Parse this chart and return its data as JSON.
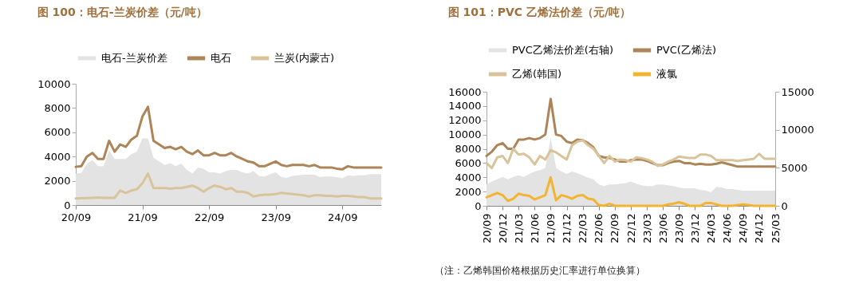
{
  "chart_data": [
    {
      "type": "line",
      "title": "图 100：电石-兰炭价差（元/吨）",
      "legend": "top",
      "categories": [
        "20/09",
        null,
        null,
        null,
        null,
        null,
        null,
        null,
        null,
        null,
        null,
        null,
        "21/09",
        null,
        null,
        null,
        null,
        null,
        null,
        null,
        null,
        null,
        null,
        null,
        "22/09",
        null,
        null,
        null,
        null,
        null,
        null,
        null,
        null,
        null,
        null,
        null,
        "23/09",
        null,
        null,
        null,
        null,
        null,
        null,
        null,
        null,
        null,
        null,
        null,
        "24/09",
        null,
        null,
        null,
        null,
        null,
        null,
        null
      ],
      "ylim": [
        0,
        10000
      ],
      "yticks": [
        0,
        2000,
        4000,
        6000,
        8000,
        10000
      ],
      "series": [
        {
          "name": "电石-兰炭价差",
          "type": "area",
          "color": "#e3e3e3",
          "values": [
            2600,
            2640,
            3400,
            3700,
            3200,
            3200,
            4500,
            3800,
            3800,
            3800,
            4200,
            4400,
            5500,
            5500,
            3900,
            3600,
            3300,
            3450,
            3200,
            3400,
            2900,
            2600,
            3100,
            3000,
            2700,
            2700,
            2600,
            2800,
            2900,
            2900,
            2700,
            2600,
            2800,
            2400,
            2350,
            2550,
            2700,
            2300,
            2250,
            2400,
            2450,
            2500,
            2500,
            2500,
            2300,
            2350,
            2350,
            2300,
            2200,
            2450,
            2400,
            2450,
            2450,
            2550,
            2550,
            2550
          ]
        },
        {
          "name": "电石",
          "type": "line",
          "color": "#ad8457",
          "values": [
            3150,
            3200,
            4000,
            4300,
            3800,
            3800,
            5300,
            4400,
            5000,
            4800,
            5400,
            5700,
            7300,
            8100,
            5300,
            5000,
            4700,
            4800,
            4600,
            4800,
            4400,
            4200,
            4500,
            4100,
            4100,
            4300,
            4100,
            4100,
            4300,
            4000,
            3800,
            3600,
            3500,
            3200,
            3200,
            3400,
            3600,
            3300,
            3200,
            3300,
            3300,
            3300,
            3200,
            3300,
            3100,
            3100,
            3100,
            3000,
            2950,
            3200,
            3100,
            3100,
            3100,
            3100,
            3100,
            3100
          ]
        },
        {
          "name": "兰炭(内蒙古)",
          "type": "line",
          "color": "#d9c39a",
          "values": [
            550,
            560,
            580,
            600,
            620,
            600,
            600,
            600,
            1200,
            1000,
            1200,
            1300,
            1800,
            2600,
            1400,
            1400,
            1400,
            1350,
            1400,
            1400,
            1500,
            1600,
            1400,
            1100,
            1400,
            1600,
            1500,
            1300,
            1400,
            1100,
            1100,
            1000,
            700,
            800,
            850,
            850,
            900,
            1000,
            950,
            900,
            850,
            800,
            700,
            800,
            800,
            750,
            750,
            700,
            750,
            750,
            700,
            650,
            650,
            550,
            550,
            550
          ]
        }
      ]
    },
    {
      "type": "line",
      "title": "图 101：PVC 乙烯法价差（元/吨）",
      "legend": "top",
      "annotations": [
        "（注：乙烯韩国价格根据历史汇率进行单位换算）"
      ],
      "categories": [
        "20/09",
        null,
        null,
        "20/12",
        null,
        null,
        "21/03",
        null,
        null,
        "21/06",
        null,
        null,
        "21/09",
        null,
        null,
        "21/12",
        null,
        null,
        "22/03",
        null,
        null,
        "22/06",
        null,
        null,
        "22/09",
        null,
        null,
        "22/12",
        null,
        null,
        "23/03",
        null,
        null,
        "23/06",
        null,
        null,
        "23/09",
        null,
        null,
        "23/12",
        null,
        null,
        "24/03",
        null,
        null,
        "24/06",
        null,
        null,
        "24/09",
        null,
        null,
        "24/12",
        null,
        null,
        "25/03"
      ],
      "ylim": [
        0,
        16000
      ],
      "yticks": [
        0,
        2000,
        4000,
        6000,
        8000,
        10000,
        12000,
        14000,
        16000
      ],
      "y2lim": [
        0,
        15000
      ],
      "y2ticks": [
        0,
        5000,
        10000,
        15000
      ],
      "series": [
        {
          "name": "PVC乙烯法价差(右轴)",
          "type": "area",
          "axis": "y2",
          "color": "#e3e3e3",
          "values": [
            2800,
            3200,
            3500,
            3800,
            3500,
            3800,
            4000,
            3800,
            4200,
            4500,
            4700,
            5000,
            9000,
            5000,
            4500,
            4200,
            4500,
            4300,
            4000,
            3700,
            3500,
            2800,
            2600,
            2800,
            2800,
            2900,
            3000,
            3200,
            2900,
            2700,
            2600,
            2600,
            2800,
            2800,
            2700,
            2600,
            2400,
            2300,
            2300,
            2300,
            2100,
            2000,
            1800,
            2500,
            2400,
            2200,
            2200,
            2100,
            2000,
            2000,
            2000,
            2000,
            2000,
            2000,
            2000
          ]
        },
        {
          "name": "PVC(乙烯法)",
          "type": "line",
          "color": "#ad8457",
          "values": [
            7000,
            7600,
            8500,
            8800,
            8000,
            8000,
            9300,
            9300,
            9500,
            9300,
            9500,
            10000,
            15000,
            10000,
            9800,
            9000,
            8800,
            9300,
            9200,
            8800,
            8200,
            7000,
            6800,
            6700,
            6500,
            6200,
            6200,
            6400,
            6500,
            6500,
            6300,
            6000,
            5700,
            5700,
            6000,
            6200,
            6300,
            6000,
            6000,
            5800,
            5900,
            5800,
            5800,
            5900,
            6100,
            5900,
            5700,
            5500,
            5500,
            5500,
            5500,
            5500,
            5500,
            5500,
            5500
          ]
        },
        {
          "name": "乙烯(韩国)",
          "type": "line",
          "color": "#d9c39a",
          "values": [
            6000,
            5300,
            6800,
            7000,
            6000,
            8000,
            7200,
            7300,
            6800,
            5800,
            7000,
            6500,
            7800,
            7500,
            7000,
            6500,
            8500,
            9000,
            9200,
            8500,
            8000,
            7000,
            6000,
            7000,
            6200,
            6500,
            6400,
            6200,
            6800,
            6700,
            6500,
            6200,
            5600,
            5800,
            6200,
            6500,
            6900,
            6800,
            6700,
            6700,
            7200,
            7200,
            7000,
            6400,
            6400,
            6400,
            6400,
            6300,
            6400,
            6500,
            6600,
            7300,
            6600,
            6600,
            6600
          ]
        },
        {
          "name": "液氯",
          "type": "line",
          "color": "#f2b431",
          "values": [
            1200,
            1500,
            1800,
            1500,
            700,
            1000,
            1700,
            1500,
            1400,
            900,
            1200,
            1500,
            4000,
            800,
            1500,
            1300,
            1000,
            1400,
            1500,
            1000,
            900,
            100,
            0,
            300,
            0,
            0,
            0,
            0,
            0,
            0,
            0,
            0,
            0,
            0,
            200,
            300,
            500,
            300,
            0,
            0,
            0,
            400,
            400,
            200,
            0,
            0,
            0,
            100,
            200,
            100,
            0,
            0,
            0,
            0,
            0
          ]
        }
      ]
    }
  ]
}
